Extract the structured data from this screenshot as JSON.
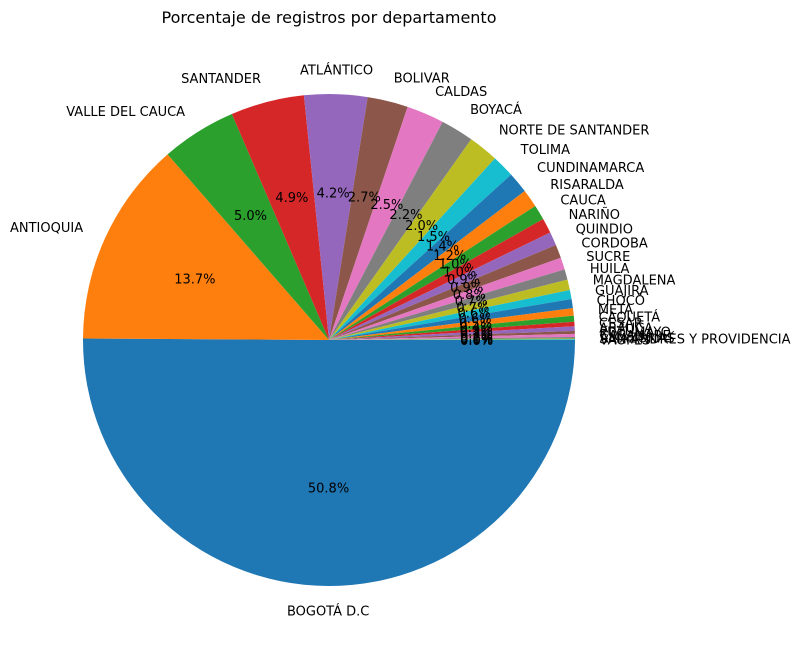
{
  "chart_data": {
    "type": "pie",
    "title": "Porcentaje de registros por departamento",
    "start_angle_deg": 0,
    "direction": "clockwise",
    "slices": [
      {
        "label": "BOGOTÁ D.C",
        "value": 50.8,
        "pct_label": "50.8%",
        "color": "#1f77b4"
      },
      {
        "label": "ANTIOQUIA",
        "value": 13.7,
        "pct_label": "13.7%",
        "color": "#ff7f0e"
      },
      {
        "label": "VALLE DEL CAUCA",
        "value": 5.0,
        "pct_label": "5.0%",
        "color": "#2ca02c"
      },
      {
        "label": "SANTANDER",
        "value": 4.9,
        "pct_label": "4.9%",
        "color": "#d62728"
      },
      {
        "label": "ATLÁNTICO",
        "value": 4.2,
        "pct_label": "4.2%",
        "color": "#9467bd"
      },
      {
        "label": "BOLIVAR",
        "value": 2.7,
        "pct_label": "2.7%",
        "color": "#8c564b"
      },
      {
        "label": "CALDAS",
        "value": 2.5,
        "pct_label": "2.5%",
        "color": "#e377c2"
      },
      {
        "label": "BOYACÁ",
        "value": 2.2,
        "pct_label": "2.2%",
        "color": "#7f7f7f"
      },
      {
        "label": "NORTE DE SANTANDER",
        "value": 2.0,
        "pct_label": "2.0%",
        "color": "#bcbd22"
      },
      {
        "label": "TOLIMA",
        "value": 1.5,
        "pct_label": "1.5%",
        "color": "#17becf"
      },
      {
        "label": "CUNDINAMARCA",
        "value": 1.4,
        "pct_label": "1.4%",
        "color": "#1f77b4"
      },
      {
        "label": "RISARALDA",
        "value": 1.2,
        "pct_label": "1.2%",
        "color": "#ff7f0e"
      },
      {
        "label": "CAUCA",
        "value": 1.0,
        "pct_label": "1.0%",
        "color": "#2ca02c"
      },
      {
        "label": "NARIÑO",
        "value": 1.0,
        "pct_label": "1.0%",
        "color": "#d62728"
      },
      {
        "label": "QUINDIO",
        "value": 0.9,
        "pct_label": "0.9%",
        "color": "#9467bd"
      },
      {
        "label": "CORDOBA",
        "value": 0.9,
        "pct_label": "0.9%",
        "color": "#8c564b"
      },
      {
        "label": "SUCRE",
        "value": 0.8,
        "pct_label": "0.8%",
        "color": "#e377c2"
      },
      {
        "label": "HUILA",
        "value": 0.7,
        "pct_label": "0.7%",
        "color": "#7f7f7f"
      },
      {
        "label": "MAGDALENA",
        "value": 0.7,
        "pct_label": "0.7%",
        "color": "#bcbd22"
      },
      {
        "label": "GUAJIRA",
        "value": 0.6,
        "pct_label": "0.6%",
        "color": "#17becf"
      },
      {
        "label": "CHOCÓ",
        "value": 0.6,
        "pct_label": "0.6%",
        "color": "#1f77b4"
      },
      {
        "label": "META",
        "value": 0.5,
        "pct_label": "0.5%",
        "color": "#ff7f0e"
      },
      {
        "label": "CAQUETÁ",
        "value": 0.4,
        "pct_label": "0.4%",
        "color": "#2ca02c"
      },
      {
        "label": "CESAR",
        "value": 0.3,
        "pct_label": "0.3%",
        "color": "#d62728"
      },
      {
        "label": "ARAUCA",
        "value": 0.3,
        "pct_label": "0.3%",
        "color": "#9467bd"
      },
      {
        "label": "PUTUMAYO",
        "value": 0.2,
        "pct_label": "0.2%",
        "color": "#8c564b"
      },
      {
        "label": "CASANARE",
        "value": 0.2,
        "pct_label": "0.2%",
        "color": "#e377c2"
      },
      {
        "label": "AMAZONAS",
        "value": 0.1,
        "pct_label": "0.1%",
        "color": "#7f7f7f"
      },
      {
        "label": "SAN ANDRÉS Y PROVIDENCIA",
        "value": 0.05,
        "pct_label": "0.0%",
        "color": "#bcbd22"
      },
      {
        "label": "VAUPÉS",
        "value": 0.05,
        "pct_label": "0.0%",
        "color": "#17becf"
      }
    ]
  }
}
